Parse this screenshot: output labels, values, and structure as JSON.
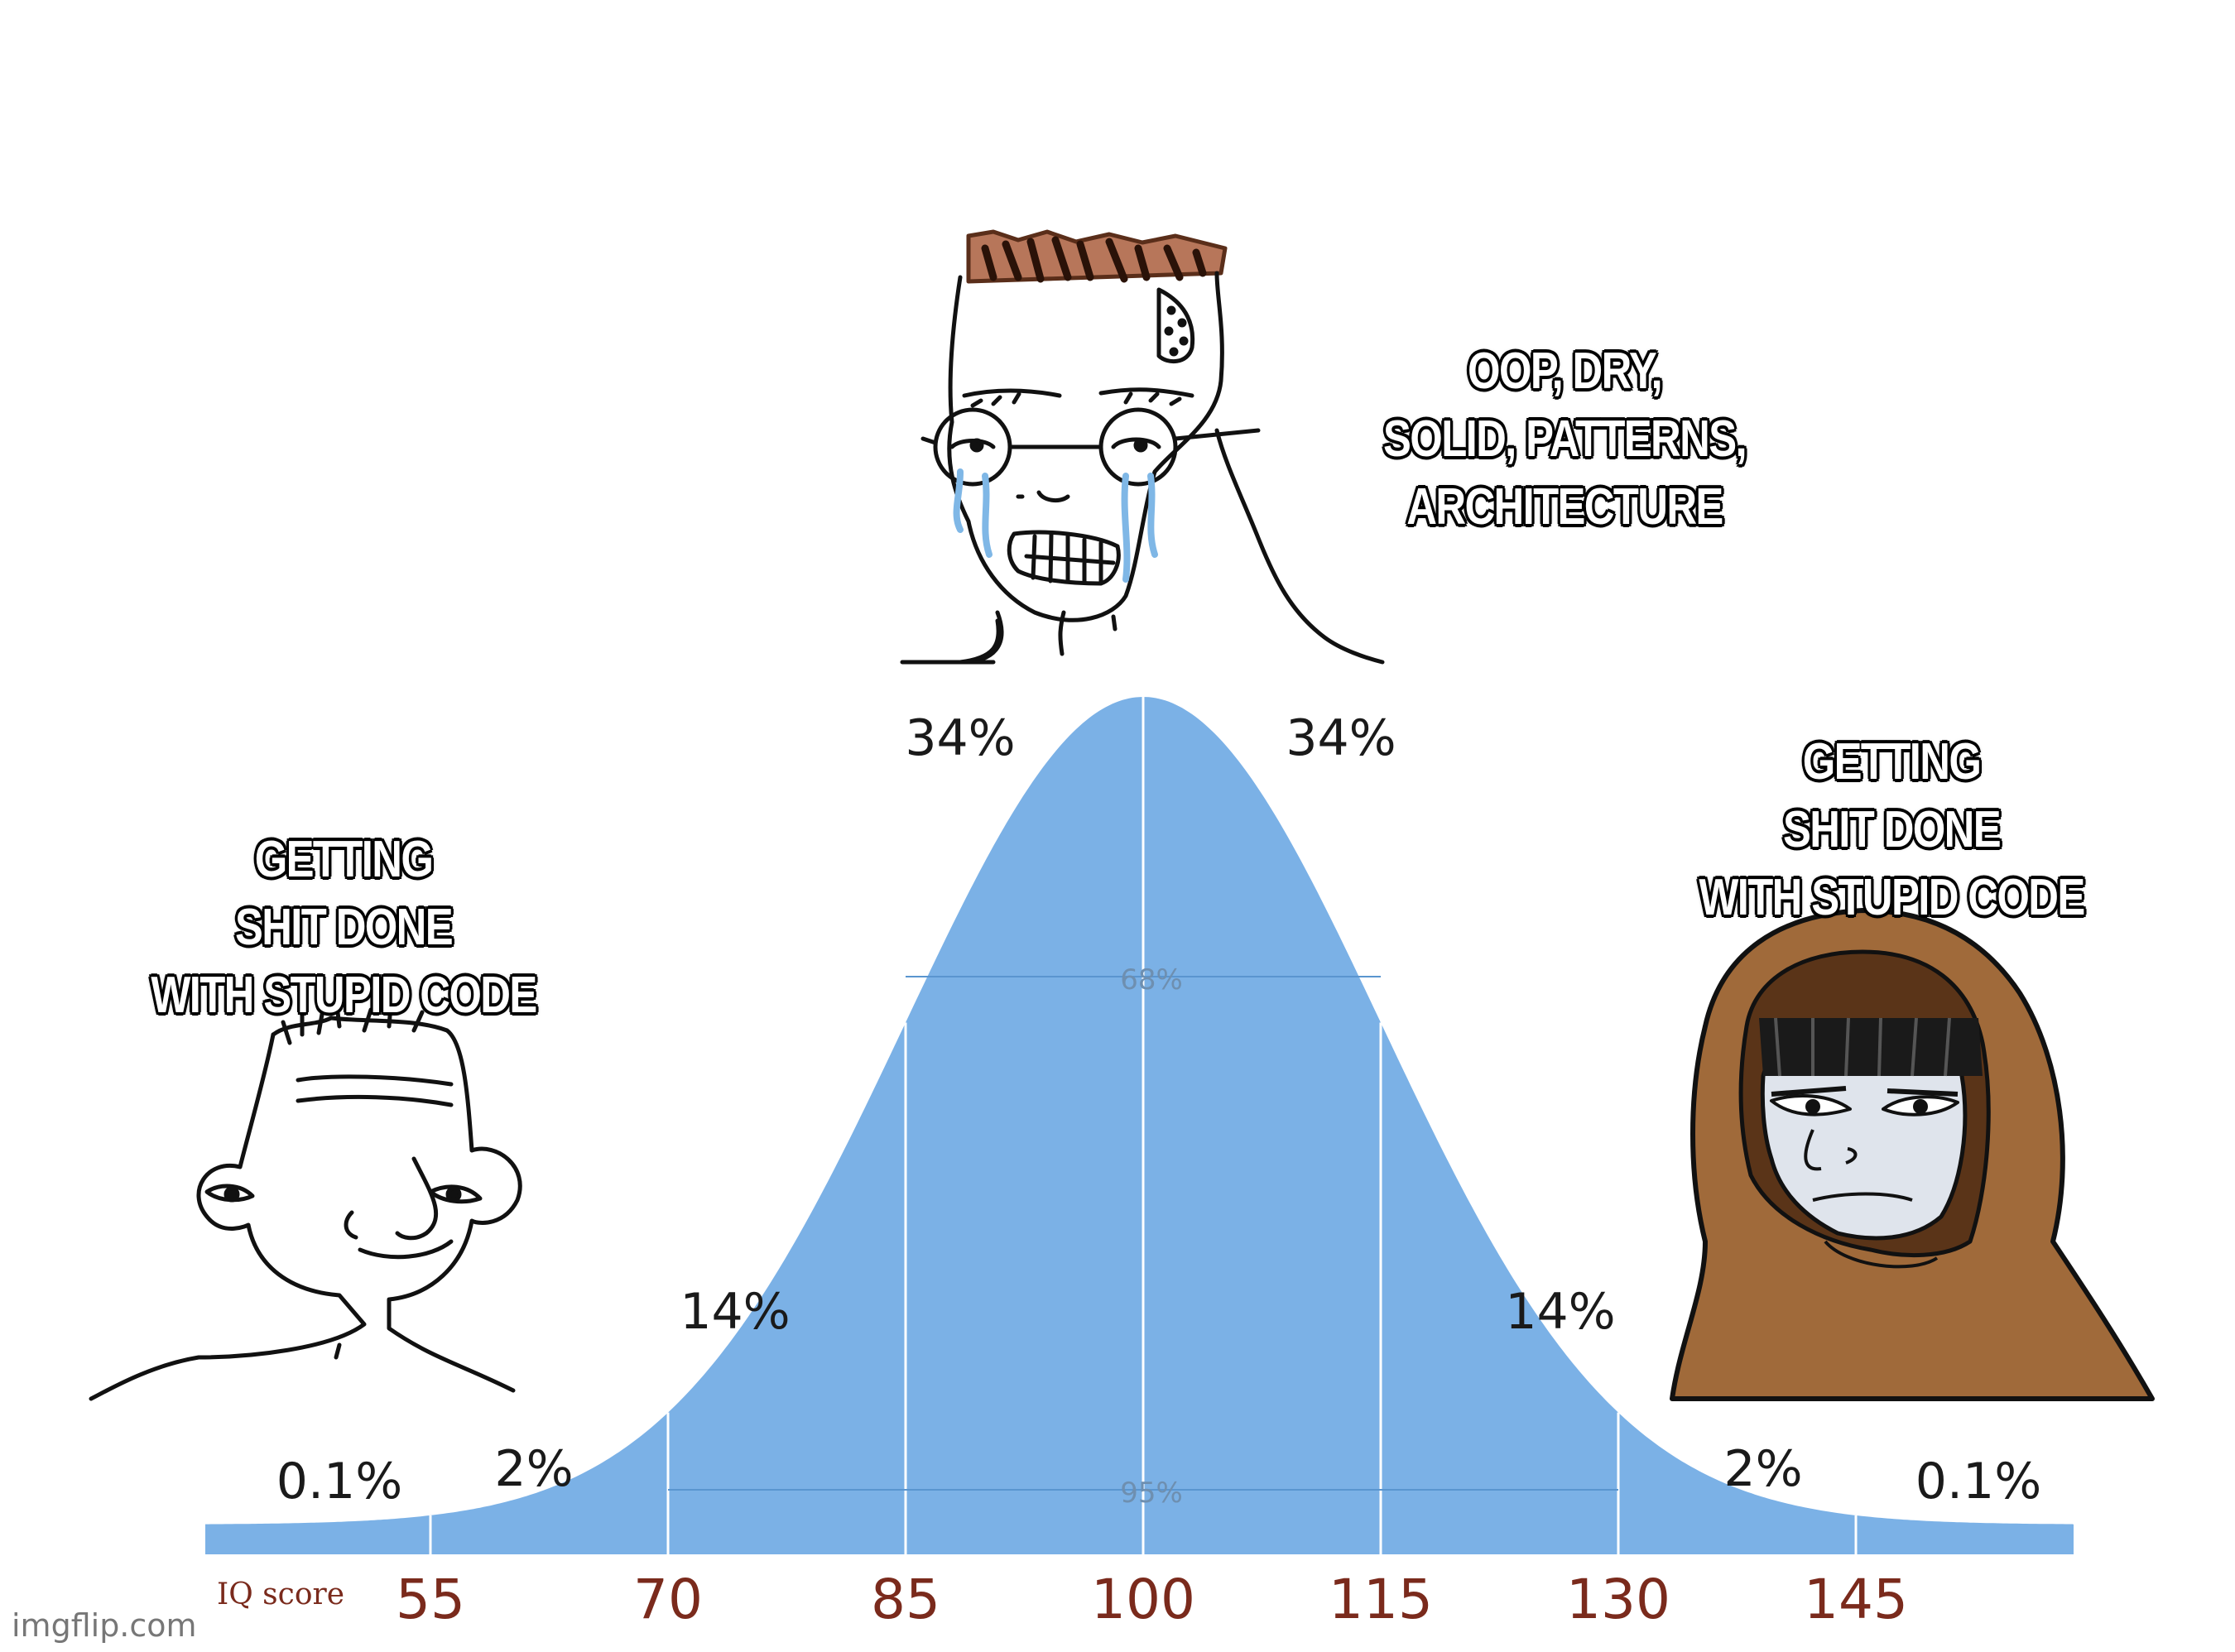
{
  "chart_data": {
    "type": "area",
    "title": "",
    "xlabel": "IQ score",
    "x_ticks": [
      "55",
      "70",
      "85",
      "100",
      "115",
      "130",
      "145"
    ],
    "x_range": [
      40,
      160
    ],
    "distribution": {
      "mean": 100,
      "sd": 15
    },
    "region_labels": [
      "0.1%",
      "2%",
      "14%",
      "34%",
      "34%",
      "14%",
      "2%",
      "0.1%"
    ],
    "interval_labels": [
      {
        "label": "68%",
        "from": 85,
        "to": 115
      },
      {
        "label": "95%",
        "from": 70,
        "to": 130
      }
    ],
    "fill_color": "#7bb1e6",
    "tick_color": "#7a2a1c"
  },
  "captions": {
    "left": [
      "GETTING",
      "SHIT DONE",
      "WITH STUPID CODE"
    ],
    "middle": [
      "OOP, DRY,",
      "SOLID, PATTERNS,",
      "ARCHITECTURE"
    ],
    "right": [
      "GETTING",
      "SHIT DONE",
      "WITH STUPID CODE"
    ]
  },
  "characters": {
    "left": "simple-wojak-icon",
    "middle": "crying-nerd-wojak-icon",
    "right": "hooded-monk-wojak-icon"
  },
  "watermark": "imgflip.com"
}
